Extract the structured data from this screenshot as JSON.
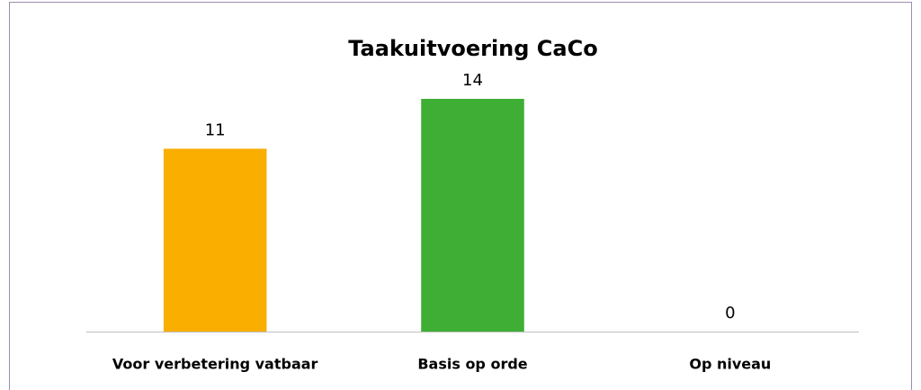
{
  "chart_data": {
    "type": "bar",
    "title": "Taakuitvoering CaCo",
    "categories": [
      "Voor verbetering vatbaar",
      "Basis op orde",
      "Op niveau"
    ],
    "values": [
      11,
      14,
      0
    ],
    "colors": [
      "#f9ae00",
      "#3fae35",
      "#3fae35"
    ]
  }
}
